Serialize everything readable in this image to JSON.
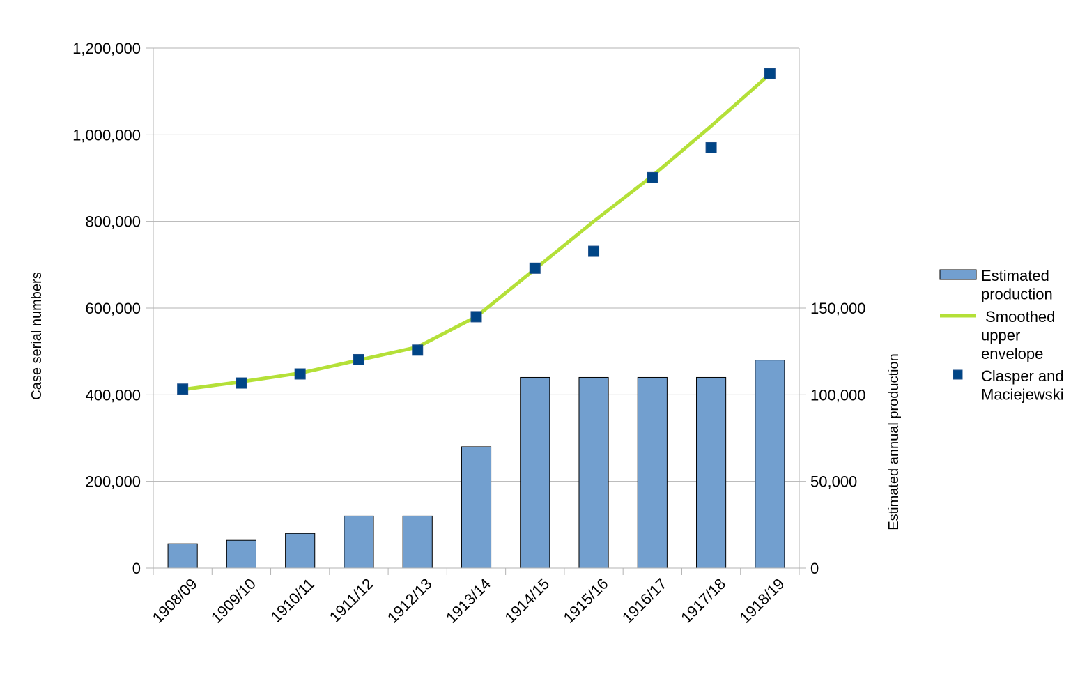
{
  "chart_data": {
    "type": "bar",
    "title": "",
    "categories": [
      "1908/09",
      "1909/10",
      "1910/11",
      "1911/12",
      "1912/13",
      "1913/14",
      "1914/15",
      "1915/16",
      "1916/17",
      "1917/18",
      "1918/19"
    ],
    "y_left": {
      "label": "Case serial numbers",
      "range": [
        0,
        1200000
      ],
      "ticks": [
        0,
        200000,
        400000,
        600000,
        800000,
        1000000,
        1200000
      ],
      "tick_labels": [
        "0",
        "200,000",
        "400,000",
        "600,000",
        "800,000",
        "1,000,000",
        "1,200,000"
      ]
    },
    "y_right": {
      "label": "Estimated annual production",
      "range": [
        0,
        300000
      ],
      "ticks": [
        0,
        50000,
        100000,
        150000
      ],
      "tick_labels": [
        "0",
        "50,000",
        "100,000",
        "150,000"
      ]
    },
    "grid": true,
    "legend_position": "right",
    "series": [
      {
        "name": "Estimated production",
        "type": "bar",
        "axis": "right",
        "color": "#729fcf",
        "values": [
          14000,
          16000,
          20000,
          30000,
          30000,
          70000,
          110000,
          110000,
          110000,
          110000,
          120000
        ]
      },
      {
        "name": " Smoothed upper envelope",
        "type": "line",
        "axis": "left",
        "color": "#b4e038",
        "values": [
          412000,
          430000,
          450000,
          480000,
          510000,
          580000,
          690000,
          800000,
          905000,
          1020000,
          1140000
        ]
      },
      {
        "name": "Clasper and Maciejewski",
        "type": "scatter",
        "axis": "left",
        "color": "#004586",
        "values": [
          413000,
          427000,
          448000,
          481000,
          503000,
          580000,
          692000,
          731000,
          901000,
          970000,
          1141000
        ]
      }
    ],
    "legend_lines": [
      [
        "Estimated",
        "production"
      ],
      [
        " Smoothed",
        "upper",
        "envelope"
      ],
      [
        "Clasper and",
        "Maciejewski"
      ]
    ]
  }
}
